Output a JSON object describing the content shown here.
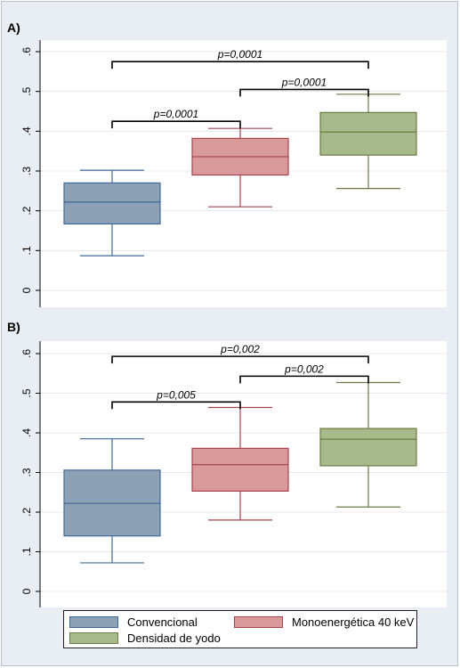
{
  "chart_data": [
    {
      "type": "box",
      "panel_label": "A)",
      "y_ticks": [
        ".6",
        ".5",
        ".4",
        ".3",
        ".2",
        ".1",
        "0"
      ],
      "y_tick_values": [
        0.6,
        0.5,
        0.4,
        0.3,
        0.2,
        0.1,
        0
      ],
      "ylim": [
        0,
        0.6
      ],
      "grid": true,
      "series": [
        {
          "name": "Convencional",
          "whisker_low": 0.087,
          "q1": 0.167,
          "median": 0.222,
          "q3": 0.27,
          "whisker_high": 0.302
        },
        {
          "name": "Monoenergética 40 keV",
          "whisker_low": 0.21,
          "q1": 0.29,
          "median": 0.336,
          "q3": 0.382,
          "whisker_high": 0.407
        },
        {
          "name": "Densidad de yodo",
          "whisker_low": 0.256,
          "q1": 0.34,
          "median": 0.398,
          "q3": 0.447,
          "whisker_high": 0.493
        }
      ],
      "annotations": [
        {
          "from": 0,
          "to": 1,
          "text": "p=0,0001",
          "y": 0.425
        },
        {
          "from": 1,
          "to": 2,
          "text": "p=0,0001",
          "y": 0.505
        },
        {
          "from": 0,
          "to": 2,
          "text": "p=0,0001",
          "y": 0.575
        }
      ]
    },
    {
      "type": "box",
      "panel_label": "B)",
      "y_ticks": [
        ".6",
        ".5",
        ".4",
        ".3",
        ".2",
        ".1",
        "0"
      ],
      "y_tick_values": [
        0.6,
        0.5,
        0.4,
        0.3,
        0.2,
        0.1,
        0
      ],
      "ylim": [
        0,
        0.6
      ],
      "grid": true,
      "series": [
        {
          "name": "Convencional",
          "whisker_low": 0.072,
          "q1": 0.14,
          "median": 0.222,
          "q3": 0.306,
          "whisker_high": 0.385
        },
        {
          "name": "Monoenergética 40 keV",
          "whisker_low": 0.18,
          "q1": 0.253,
          "median": 0.32,
          "q3": 0.361,
          "whisker_high": 0.464
        },
        {
          "name": "Densidad de yodo",
          "whisker_low": 0.213,
          "q1": 0.317,
          "median": 0.384,
          "q3": 0.411,
          "whisker_high": 0.527
        }
      ],
      "annotations": [
        {
          "from": 0,
          "to": 1,
          "text": "p=0,005",
          "y": 0.478
        },
        {
          "from": 1,
          "to": 2,
          "text": "p=0,002",
          "y": 0.543
        },
        {
          "from": 0,
          "to": 2,
          "text": "p=0,002",
          "y": 0.593
        }
      ]
    }
  ],
  "colors": {
    "convencional_fill": "#8da0b6",
    "convencional_line": "#3e6a97",
    "mono_fill": "#d99a9c",
    "mono_line": "#a8434d",
    "yodo_fill": "#a8b98c",
    "yodo_line": "#697b45",
    "grid": "#e4e8ee"
  },
  "legend": {
    "items": [
      {
        "label": "Convencional"
      },
      {
        "label": "Monoenergética 40 keV"
      },
      {
        "label": "Densidad de yodo"
      }
    ]
  }
}
